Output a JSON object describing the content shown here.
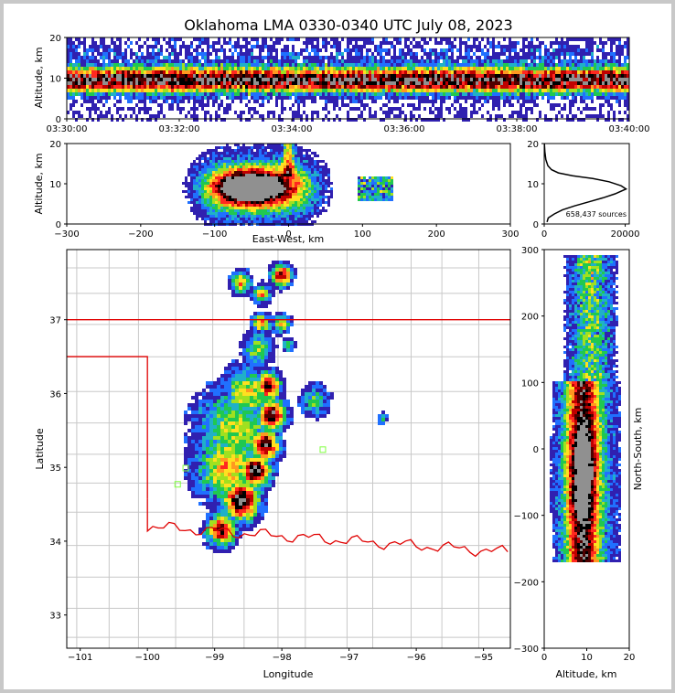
{
  "chart_data": {
    "type": "heatmap",
    "title": "Oklahoma LMA 0330-0340 UTC July 08, 2023",
    "panels": {
      "time_altitude": {
        "ylabel": "Altitude, km",
        "xticks": [
          "03:30:00",
          "03:32:00",
          "03:34:00",
          "03:36:00",
          "03:38:00",
          "03:40:00"
        ],
        "ylim": [
          0,
          20
        ],
        "yticks": [
          0,
          10,
          20
        ]
      },
      "ew_altitude": {
        "xlabel": "East-West, km",
        "ylabel": "Altitude, km",
        "xlim": [
          -300,
          300
        ],
        "xticks": [
          -300,
          -200,
          -100,
          0,
          100,
          200,
          300
        ],
        "ylim": [
          0,
          20
        ],
        "yticks": [
          0,
          10,
          20
        ]
      },
      "altitude_histogram": {
        "annotation": "658,437 sources",
        "xlim": [
          0,
          21000
        ],
        "xticks": [
          0,
          20000
        ],
        "xtick_labels": [
          "0",
          "20000"
        ],
        "yticks": [
          0,
          10,
          20
        ],
        "profile": [
          {
            "count": 700,
            "alt": 0.5
          },
          {
            "count": 1000,
            "alt": 1.5
          },
          {
            "count": 2500,
            "alt": 2.5
          },
          {
            "count": 4500,
            "alt": 3.5
          },
          {
            "count": 7500,
            "alt": 4.5
          },
          {
            "count": 11000,
            "alt": 5.5
          },
          {
            "count": 14500,
            "alt": 6.5
          },
          {
            "count": 17500,
            "alt": 7.5
          },
          {
            "count": 20200,
            "alt": 8.7
          },
          {
            "count": 19000,
            "alt": 9.5
          },
          {
            "count": 16000,
            "alt": 10.5
          },
          {
            "count": 12000,
            "alt": 11.3
          },
          {
            "count": 7000,
            "alt": 12.0
          },
          {
            "count": 3500,
            "alt": 12.7
          },
          {
            "count": 1800,
            "alt": 13.5
          },
          {
            "count": 900,
            "alt": 14.5
          },
          {
            "count": 400,
            "alt": 16
          },
          {
            "count": 150,
            "alt": 18
          },
          {
            "count": 50,
            "alt": 20
          }
        ]
      },
      "plan_view": {
        "xlabel": "Longitude",
        "ylabel": "Latitude",
        "xlim": [
          -101.2,
          -94.6
        ],
        "ylim": [
          32.55,
          37.95
        ],
        "xticks": [
          -101,
          -100,
          -99,
          -98,
          -97,
          -96,
          -95
        ],
        "yticks": [
          33,
          34,
          35,
          36,
          37
        ],
        "stations": [
          {
            "lon": -99.43,
            "lat": 34.99
          },
          {
            "lon": -99.55,
            "lat": 34.77
          },
          {
            "lon": -97.39,
            "lat": 35.24
          }
        ]
      },
      "ns_altitude": {
        "xlabel": "Altitude, km",
        "ylabel": "North-South, km",
        "xlim": [
          0,
          20
        ],
        "xticks": [
          0,
          10,
          20
        ],
        "ylim": [
          -300,
          300
        ],
        "yticks": [
          -300,
          -200,
          -100,
          0,
          100,
          200,
          300
        ]
      }
    }
  }
}
